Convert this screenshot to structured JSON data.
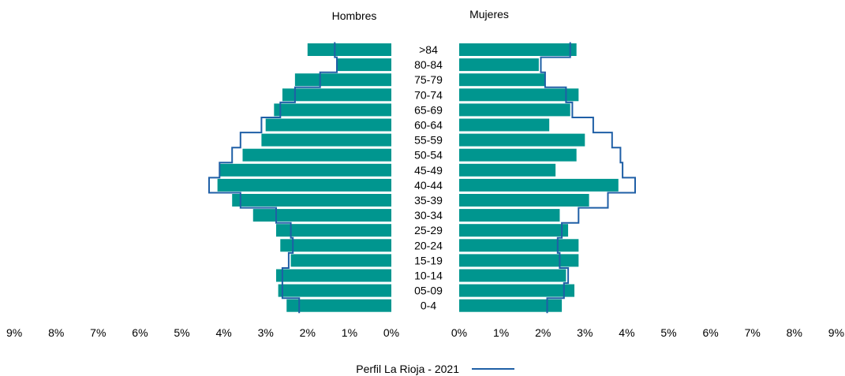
{
  "chart_data": {
    "type": "bar",
    "title_left": "Hombres",
    "title_right": "Mujeres",
    "categories": [
      ">84",
      "80-84",
      "75-79",
      "70-74",
      "65-69",
      "60-64",
      "55-59",
      "50-54",
      "45-49",
      "40-44",
      "35-39",
      "30-34",
      "25-29",
      "20-24",
      "15-19",
      "10-14",
      "05-09",
      "0-4"
    ],
    "series": [
      {
        "side": "left",
        "values": [
          2.0,
          1.3,
          2.3,
          2.6,
          2.8,
          3.0,
          3.1,
          3.55,
          4.1,
          4.15,
          3.8,
          3.3,
          2.75,
          2.65,
          2.4,
          2.75,
          2.7,
          2.5
        ]
      },
      {
        "side": "right",
        "values": [
          2.8,
          1.9,
          2.05,
          2.85,
          2.65,
          2.15,
          3.0,
          2.8,
          2.3,
          3.8,
          3.1,
          2.4,
          2.6,
          2.85,
          2.85,
          2.55,
          2.75,
          2.45
        ]
      },
      {
        "name": "Perfil La Rioja - 2021",
        "kind": "step-line",
        "color": "#1f5fa6",
        "left": [
          1.35,
          1.3,
          1.7,
          2.3,
          2.65,
          3.1,
          3.6,
          3.8,
          4.1,
          4.35,
          3.6,
          2.75,
          2.4,
          2.35,
          2.45,
          2.6,
          2.6,
          2.2
        ],
        "right": [
          2.65,
          1.95,
          2.05,
          2.55,
          2.7,
          3.2,
          3.65,
          3.85,
          3.9,
          4.2,
          3.55,
          2.85,
          2.45,
          2.35,
          2.4,
          2.6,
          2.5,
          2.1
        ]
      }
    ],
    "xticks": [
      "9%",
      "8%",
      "7%",
      "6%",
      "5%",
      "4%",
      "3%",
      "2%",
      "1%",
      "0%",
      "0%",
      "1%",
      "2%",
      "3%",
      "4%",
      "5%",
      "6%",
      "7%",
      "8%",
      "9%"
    ],
    "xlim": [
      0,
      9
    ],
    "legend": {
      "label": "Perfil La Rioja - 2021",
      "position": "bottom-center"
    },
    "grid": false,
    "colors": {
      "bar": "#00968f",
      "line": "#1f5fa6"
    }
  }
}
